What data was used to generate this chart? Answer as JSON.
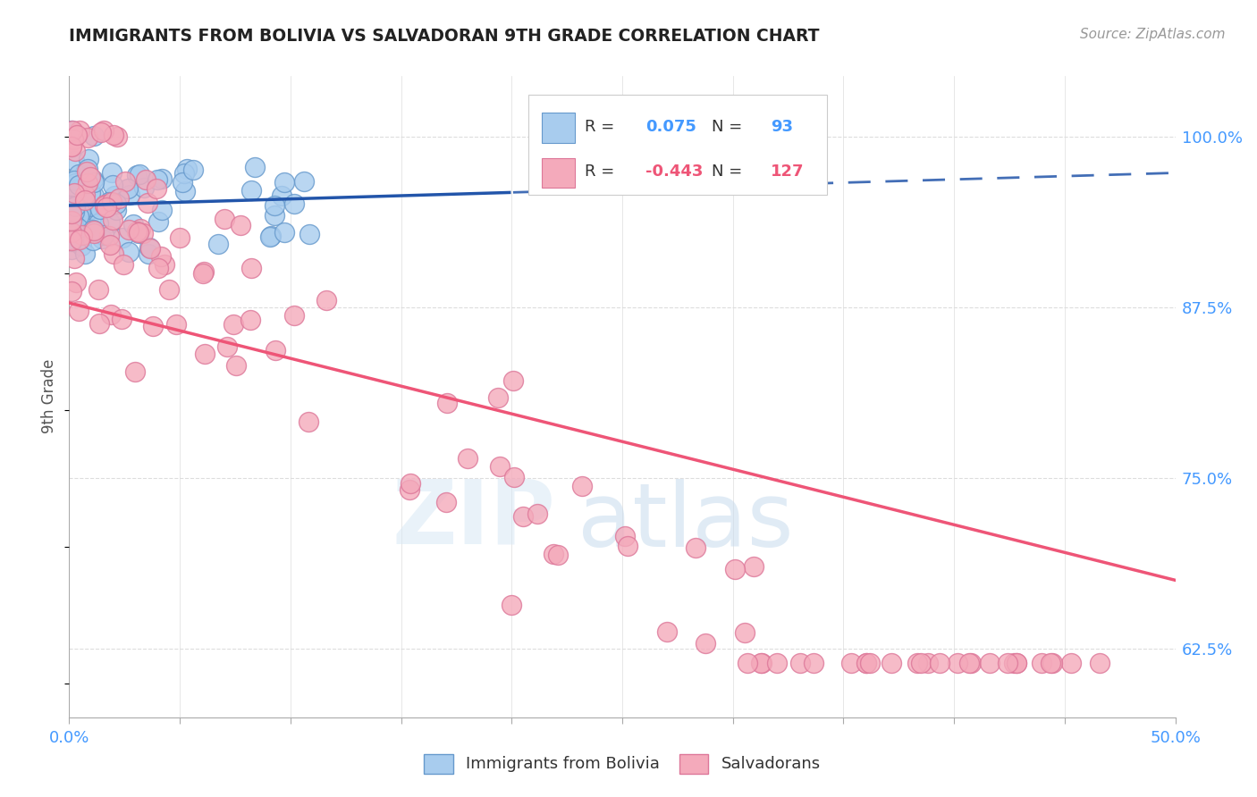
{
  "title": "IMMIGRANTS FROM BOLIVIA VS SALVADORAN 9TH GRADE CORRELATION CHART",
  "source": "Source: ZipAtlas.com",
  "ylabel": "9th Grade",
  "y_ticks": [
    0.625,
    0.75,
    0.875,
    1.0
  ],
  "y_tick_labels": [
    "62.5%",
    "75.0%",
    "87.5%",
    "100.0%"
  ],
  "x_lim": [
    0.0,
    0.5
  ],
  "y_lim": [
    0.575,
    1.045
  ],
  "legend_r_blue": "0.075",
  "legend_n_blue": "93",
  "legend_r_pink": "-0.443",
  "legend_n_pink": "127",
  "blue_color": "#A8CCEE",
  "pink_color": "#F4AABB",
  "blue_edge_color": "#6699CC",
  "pink_edge_color": "#DD7799",
  "blue_line_color": "#2255AA",
  "pink_line_color": "#EE5577",
  "background_color": "#FFFFFF",
  "title_color": "#222222",
  "source_color": "#999999",
  "tick_color": "#4499FF",
  "ylabel_color": "#555555",
  "grid_color": "#DDDDDD",
  "legend_text_color": "#333333"
}
